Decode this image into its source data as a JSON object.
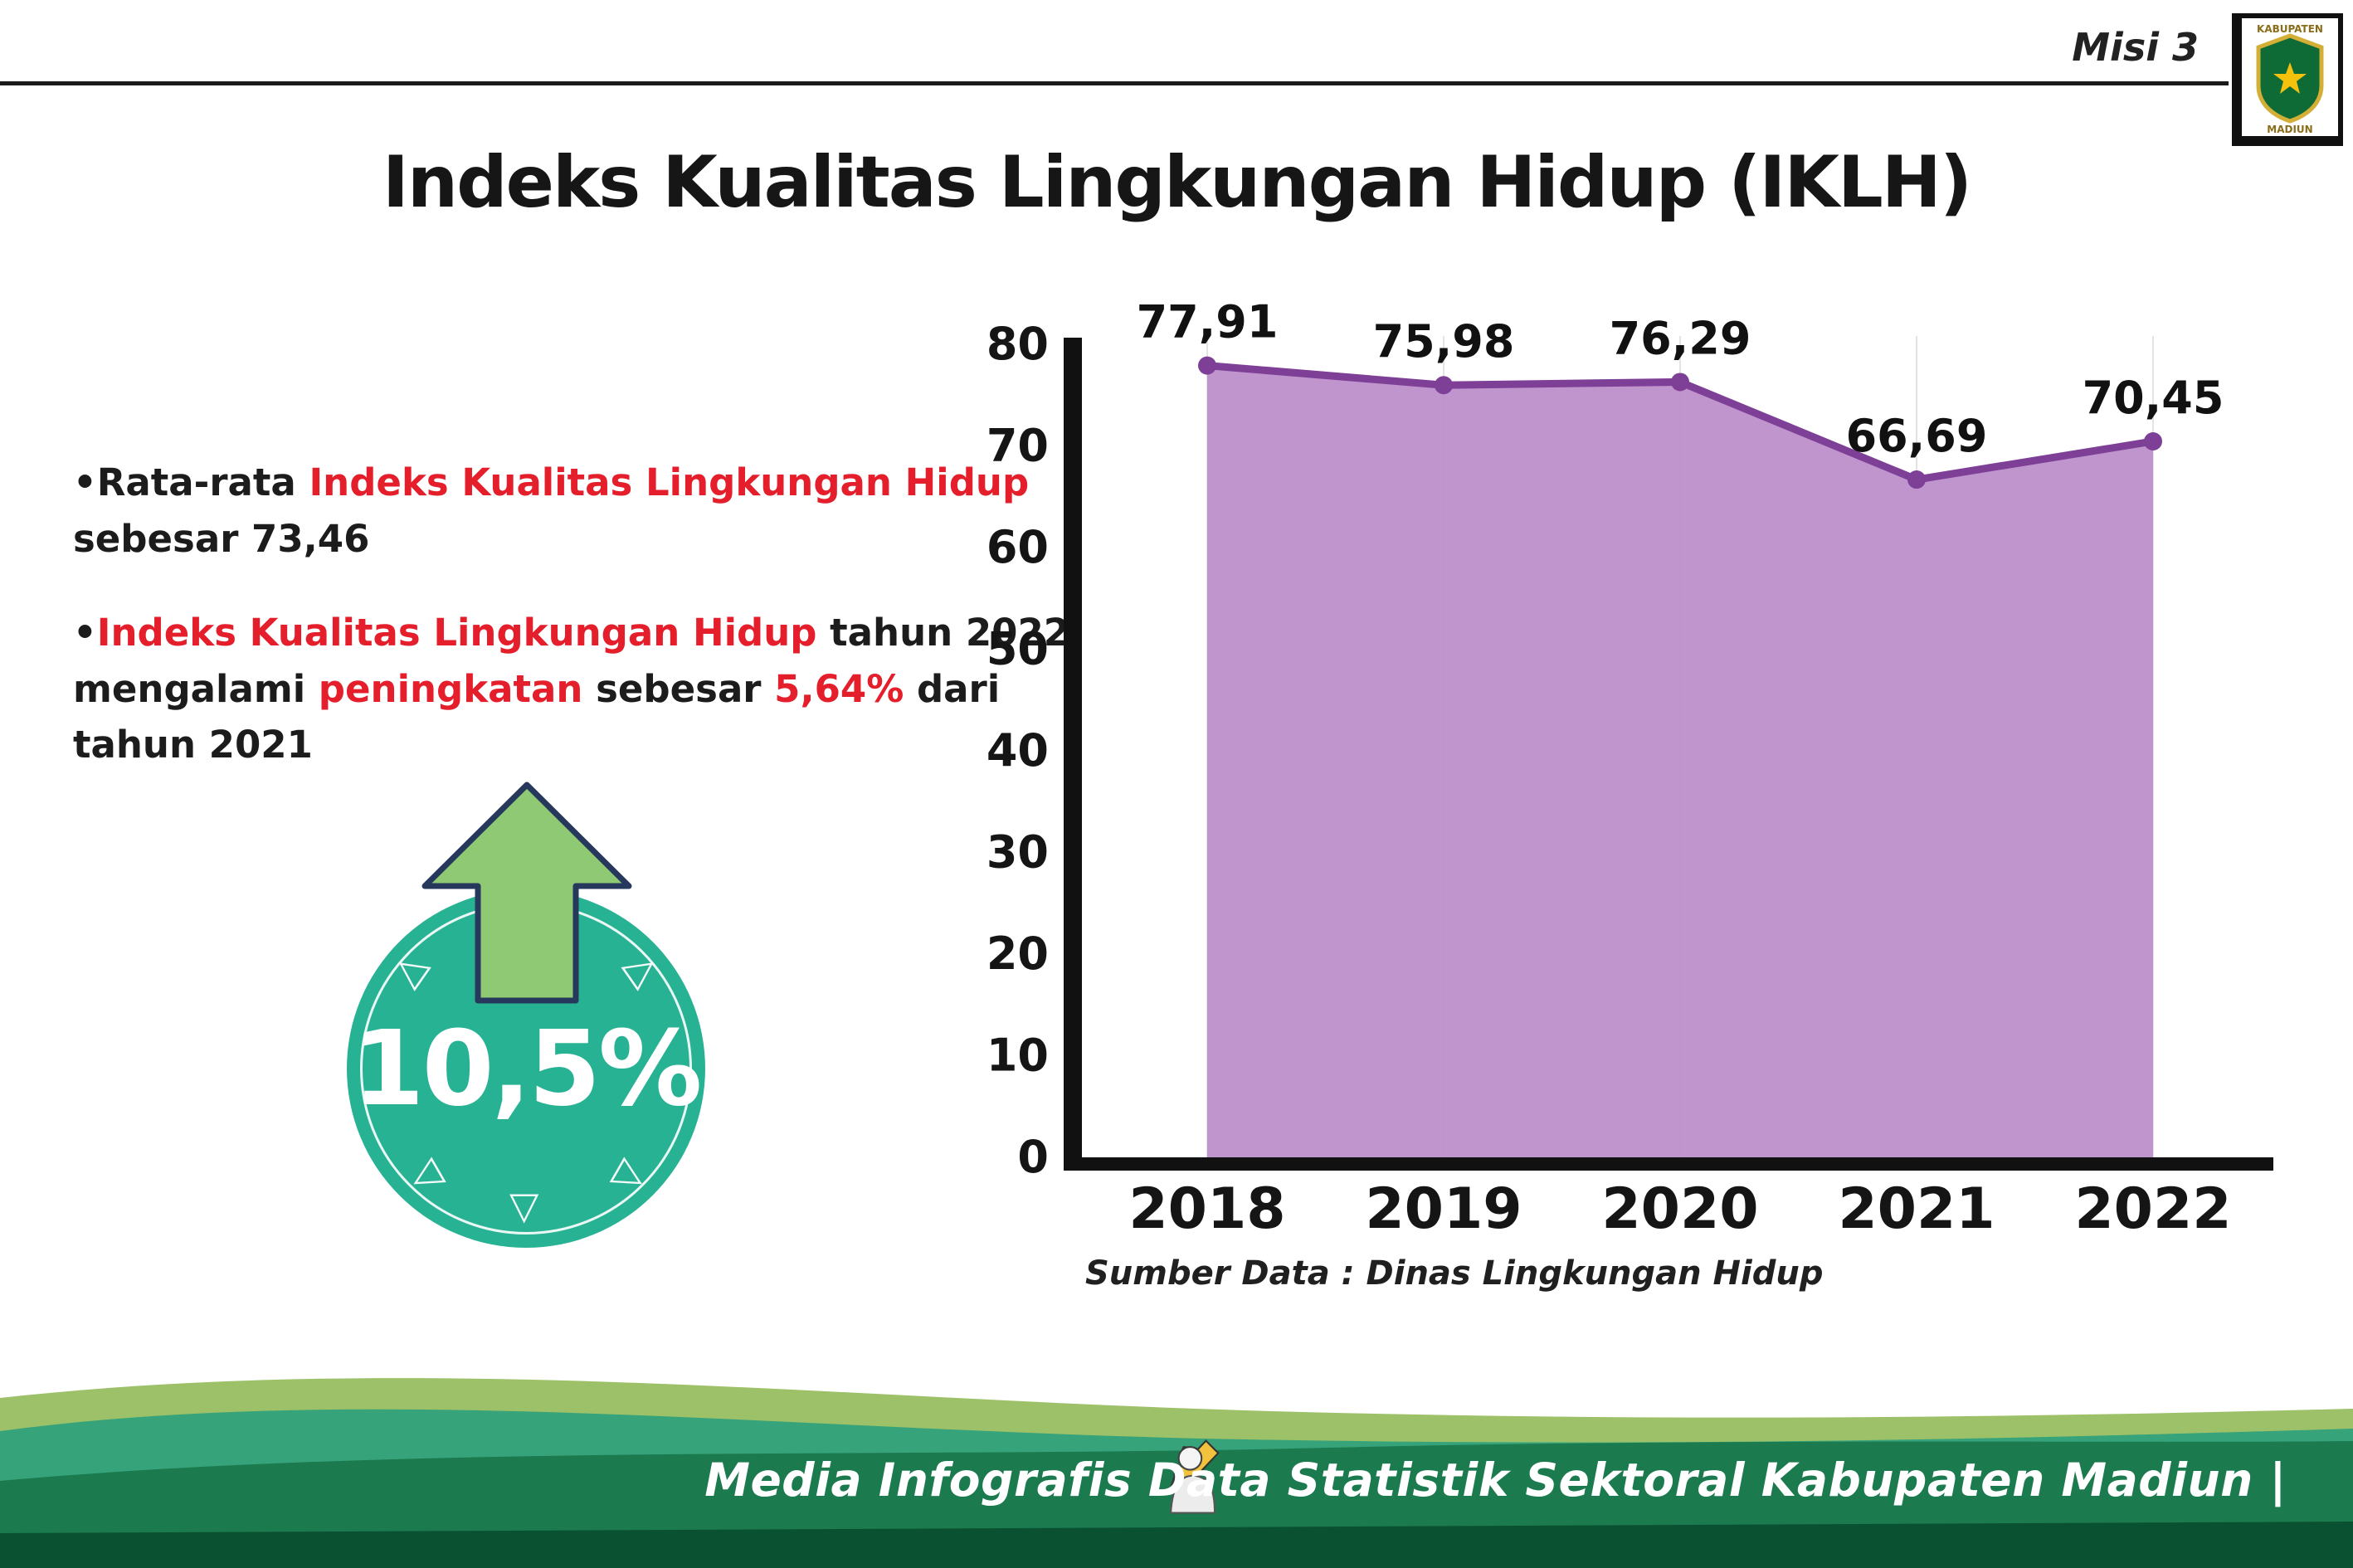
{
  "header": {
    "misi_label": "Misi 3",
    "title": "Indeks Kualitas Lingkungan Hidup (IKLH)",
    "logo": {
      "top_text": "KABUPATEN",
      "bottom_text": "MADIUN"
    }
  },
  "bullets": {
    "b1": {
      "t1": "•Rata-rata ",
      "h1": "Indeks Kualitas Lingkungan Hidup",
      "t2": " sebesar 73,46"
    },
    "b2": {
      "t0": "•",
      "h1": "Indeks Kualitas Lingkungan Hidup",
      "t1": " tahun 2022 mengalami ",
      "h2": "peningkatan",
      "t2": " sebesar ",
      "h3": "5,64%",
      "t3": " dari tahun 2021"
    }
  },
  "badge": {
    "value": "10,5%"
  },
  "chart_data": {
    "type": "area",
    "title": "",
    "categories": [
      "2018",
      "2019",
      "2020",
      "2021",
      "2022"
    ],
    "values": [
      77.91,
      75.98,
      76.29,
      66.69,
      70.45
    ],
    "value_labels": [
      "77,91",
      "75,98",
      "76,29",
      "66,69",
      "70,45"
    ],
    "xlabel": "",
    "ylabel": "",
    "ylim": [
      0,
      80
    ],
    "ytick_step": 10,
    "grid": "light vertical gridlines per year",
    "legend": "none",
    "line_color": "#7e3f97",
    "fill_color": "#bd8fca",
    "source": "Sumber Data : Dinas Lingkungan Hidup"
  },
  "footer": {
    "caption": "Media Infografis Data Statistik Sektoral Kabupaten Madiun |"
  },
  "colors": {
    "accent_red": "#e41e2b",
    "badge_teal": "#28b294",
    "arrow_green": "#8fc973",
    "wave_sage": "#9cc168",
    "wave_teal": "#37a37b",
    "wave_green": "#1c7a4f",
    "wave_dark": "#0a5132"
  }
}
